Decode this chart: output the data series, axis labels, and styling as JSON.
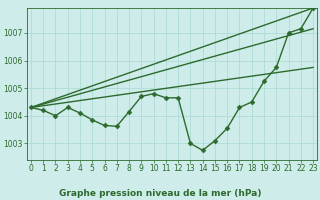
{
  "title": "Graphe pression niveau de la mer (hPa)",
  "background_color": "#ceecea",
  "grid_color": "#a8d8d4",
  "line_color": "#2d6a2d",
  "x_ticks": [
    0,
    1,
    2,
    3,
    4,
    5,
    6,
    7,
    8,
    9,
    10,
    11,
    12,
    13,
    14,
    15,
    16,
    17,
    18,
    19,
    20,
    21,
    22,
    23
  ],
  "y_ticks": [
    1003,
    1004,
    1005,
    1006,
    1007
  ],
  "ylim": [
    1002.4,
    1007.9
  ],
  "xlim": [
    -0.3,
    23.3
  ],
  "series": [
    {
      "name": "line1_top",
      "x": [
        0,
        23
      ],
      "y": [
        1004.3,
        1007.9
      ],
      "marker": null,
      "lw": 1.0
    },
    {
      "name": "line2_mid_high",
      "x": [
        0,
        23
      ],
      "y": [
        1004.3,
        1007.15
      ],
      "marker": null,
      "lw": 1.0
    },
    {
      "name": "line3_mid_low",
      "x": [
        0,
        23
      ],
      "y": [
        1004.3,
        1005.75
      ],
      "marker": null,
      "lw": 1.0
    },
    {
      "name": "line4_wavy",
      "x": [
        0,
        1,
        2,
        3,
        4,
        5,
        6,
        7,
        8,
        9,
        10,
        11,
        12,
        13,
        14,
        15,
        16,
        17,
        18,
        19,
        20,
        21,
        22,
        23
      ],
      "y": [
        1004.3,
        1004.2,
        1004.0,
        1004.3,
        1004.1,
        1003.85,
        1003.65,
        1003.62,
        1004.15,
        1004.7,
        1004.8,
        1004.65,
        1004.65,
        1003.0,
        1002.75,
        1003.1,
        1003.55,
        1004.3,
        1004.5,
        1005.25,
        1005.75,
        1007.0,
        1007.15,
        1007.9
      ],
      "marker": "D",
      "lw": 1.0
    }
  ],
  "font_size_ticks": 5.5,
  "font_size_label": 6.5,
  "marker_size": 2.5
}
